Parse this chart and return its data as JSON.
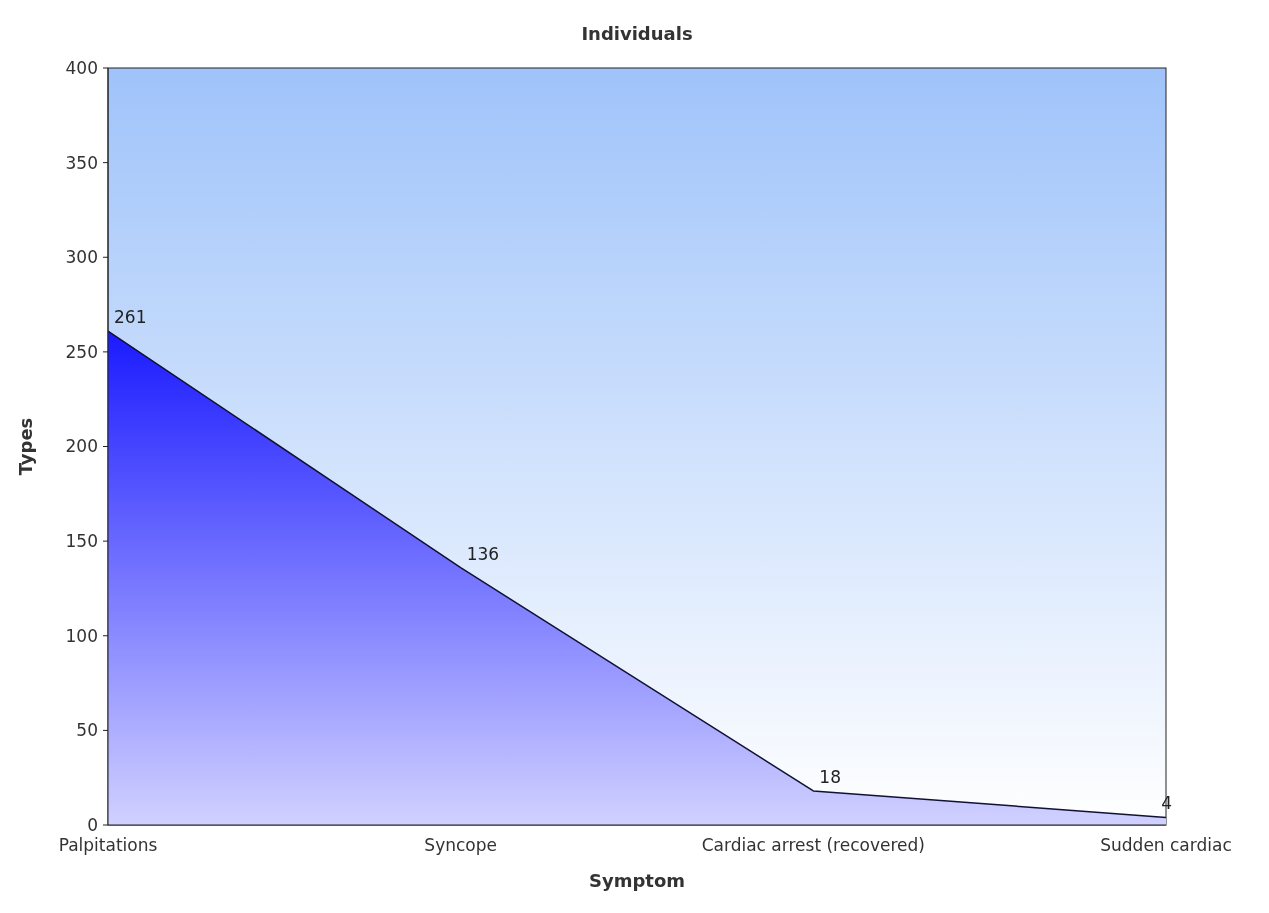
{
  "chart_data": {
    "type": "area",
    "title": "Individuals",
    "xlabel": "Symptom",
    "ylabel": "Types",
    "categories": [
      "Palpitations",
      "Syncope",
      "Cardiac arrest (recovered)",
      "Sudden cardiac"
    ],
    "values": [
      261,
      136,
      18,
      4
    ],
    "color": "#1a1aff",
    "ylim": [
      0,
      400
    ],
    "yticks": [
      0,
      50,
      100,
      150,
      200,
      250,
      300,
      350,
      400
    ],
    "grid": false,
    "data_labels": true
  }
}
